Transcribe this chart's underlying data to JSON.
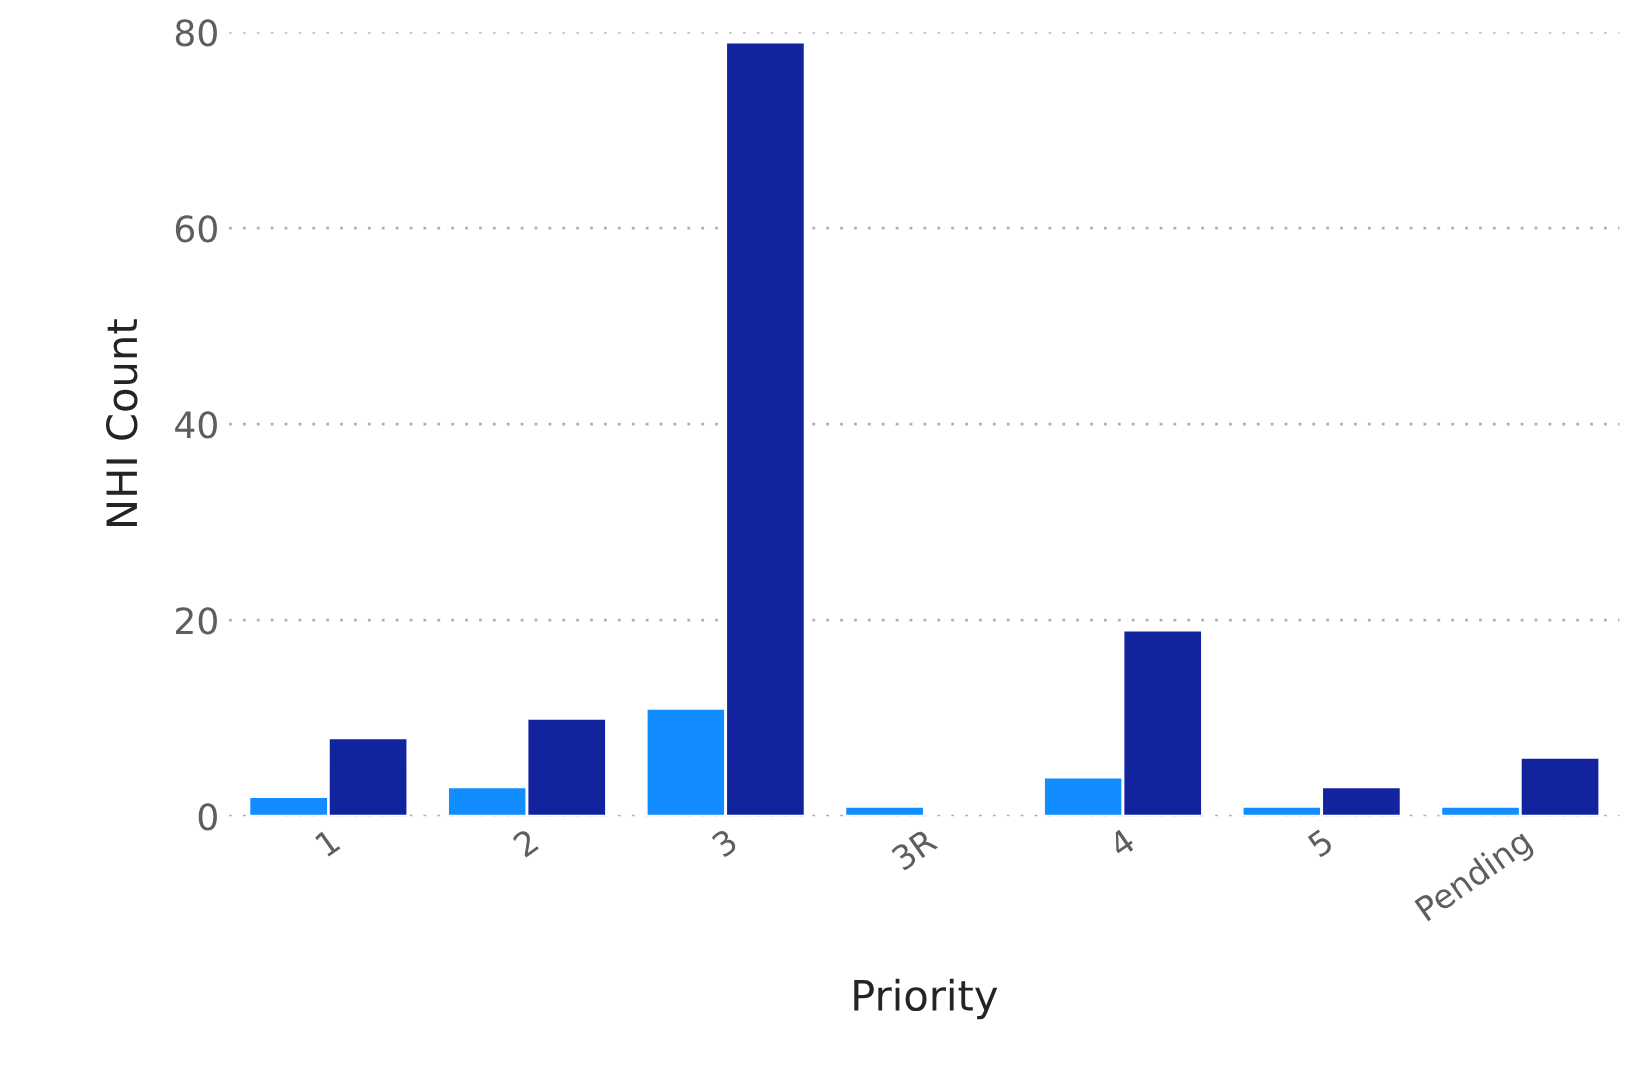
{
  "chart_data": {
    "type": "bar",
    "xlabel": "Priority",
    "ylabel": "NHI Count",
    "categories": [
      "1",
      "2",
      "3",
      "3R",
      "4",
      "5",
      "Pending"
    ],
    "series": [
      {
        "color": "#118dff",
        "values": [
          2,
          3,
          11,
          1,
          4,
          1,
          1
        ]
      },
      {
        "color": "#12239e",
        "values": [
          8,
          10,
          79,
          null,
          19,
          3,
          6
        ]
      }
    ],
    "ylim": [
      0,
      80
    ],
    "yticks": [
      0,
      20,
      40,
      60,
      80
    ],
    "grid": "y",
    "legend": false
  }
}
